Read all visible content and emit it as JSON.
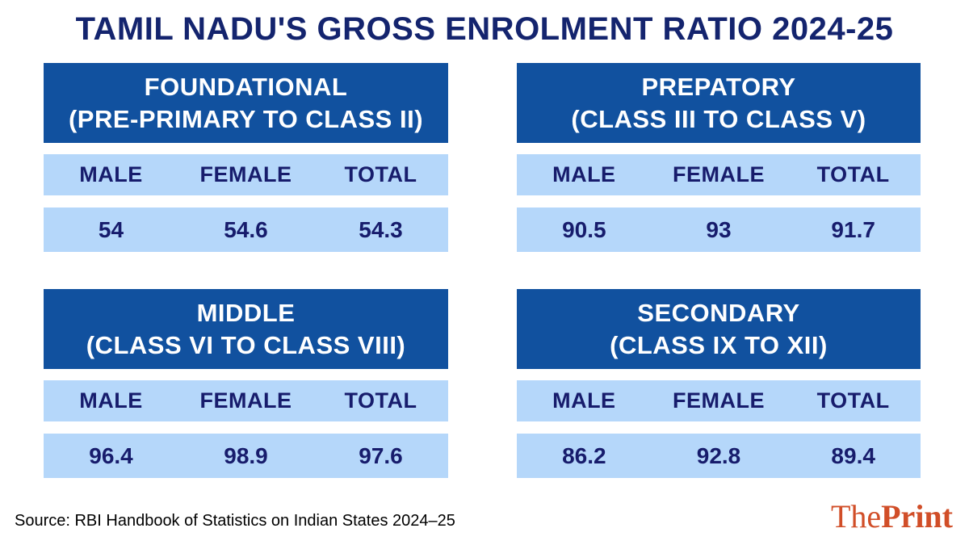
{
  "title": "TAMIL NADU'S GROSS ENROLMENT RATIO 2024-25",
  "columns": [
    "MALE",
    "FEMALE",
    "TOTAL"
  ],
  "panels": [
    {
      "name": "FOUNDATIONAL",
      "range": "(PRE-PRIMARY TO CLASS II)",
      "values": [
        "54",
        "54.6",
        "54.3"
      ]
    },
    {
      "name": "PREPATORY",
      "range": "(CLASS III TO CLASS V)",
      "values": [
        "90.5",
        "93",
        "91.7"
      ]
    },
    {
      "name": "MIDDLE",
      "range": "(CLASS VI TO CLASS VIII)",
      "values": [
        "96.4",
        "98.9",
        "97.6"
      ]
    },
    {
      "name": "SECONDARY",
      "range": "(CLASS IX TO XII)",
      "values": [
        "86.2",
        "92.8",
        "89.4"
      ]
    }
  ],
  "source": "Source: RBI Handbook of Statistics on Indian States 2024–25",
  "logo": {
    "part1": "The",
    "part2": "Print"
  },
  "colors": {
    "title_navy": "#14246e",
    "header_blue": "#11519f",
    "row_light_blue": "#b5d7fa",
    "cell_navy": "#171c6c",
    "logo_orange": "#d14e28",
    "background": "#ffffff"
  },
  "chart_data": {
    "type": "table",
    "title": "TAMIL NADU'S GROSS ENROLMENT RATIO 2024-25",
    "categories": [
      "MALE",
      "FEMALE",
      "TOTAL"
    ],
    "series": [
      {
        "name": "FOUNDATIONAL (PRE-PRIMARY TO CLASS II)",
        "values": [
          54,
          54.6,
          54.3
        ]
      },
      {
        "name": "PREPATORY (CLASS III TO CLASS V)",
        "values": [
          90.5,
          93,
          91.7
        ]
      },
      {
        "name": "MIDDLE (CLASS VI TO CLASS VIII)",
        "values": [
          96.4,
          98.9,
          97.6
        ]
      },
      {
        "name": "SECONDARY (CLASS IX TO XII)",
        "values": [
          86.2,
          92.8,
          89.4
        ]
      }
    ],
    "source": "RBI Handbook of Statistics on Indian States 2024–25",
    "layout": "2x2 grid of stage panels, each with MALE/FEMALE/TOTAL row"
  }
}
